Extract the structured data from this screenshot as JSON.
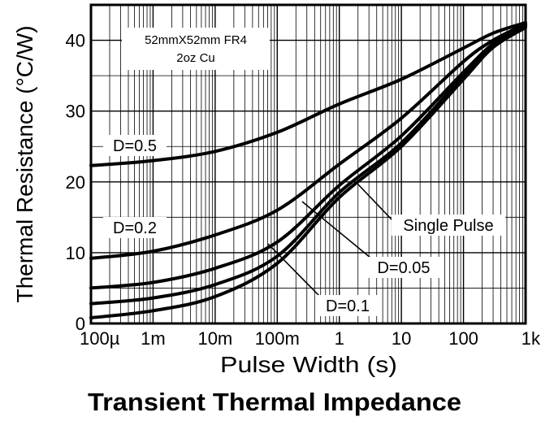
{
  "chart_data": {
    "type": "line",
    "title": "Transient Thermal Impedance",
    "xlabel": "Pulse Width (s)",
    "ylabel": "Thermal Resistance (°C/W)",
    "x_scale": "log",
    "xlim": [
      0.0001,
      1000
    ],
    "ylim": [
      0,
      45
    ],
    "grid": true,
    "x_ticks": [
      {
        "value": 0.0001,
        "label": "100µ"
      },
      {
        "value": 0.001,
        "label": "1m"
      },
      {
        "value": 0.01,
        "label": "10m"
      },
      {
        "value": 0.1,
        "label": "100m"
      },
      {
        "value": 1,
        "label": "1"
      },
      {
        "value": 10,
        "label": "10"
      },
      {
        "value": 100,
        "label": "100"
      },
      {
        "value": 1000,
        "label": "1k"
      }
    ],
    "y_ticks": [
      {
        "value": 0,
        "label": "0"
      },
      {
        "value": 10,
        "label": "10"
      },
      {
        "value": 20,
        "label": "20"
      },
      {
        "value": 30,
        "label": "30"
      },
      {
        "value": 40,
        "label": "40"
      }
    ],
    "annotation": [
      "52mmX52mm FR4",
      "2oz Cu"
    ],
    "series": [
      {
        "name": "D=0.5",
        "x": [
          0.0001,
          0.001,
          0.01,
          0.1,
          1,
          10,
          100,
          300,
          1000
        ],
        "y": [
          22.3,
          23.0,
          24.3,
          27.0,
          31.0,
          34.5,
          38.9,
          41.0,
          42.5
        ]
      },
      {
        "name": "D=0.2",
        "x": [
          0.0001,
          0.001,
          0.01,
          0.1,
          1,
          10,
          100,
          300,
          1000
        ],
        "y": [
          9.2,
          10.2,
          12.5,
          16.0,
          22.5,
          29.0,
          37.0,
          40.0,
          42.3
        ]
      },
      {
        "name": "D=0.1",
        "x": [
          0.0001,
          0.001,
          0.01,
          0.1,
          1,
          10,
          100,
          300,
          1000
        ],
        "y": [
          5.0,
          5.8,
          7.8,
          11.5,
          19.5,
          26.5,
          35.5,
          39.5,
          42.2
        ]
      },
      {
        "name": "D=0.05",
        "x": [
          0.0001,
          0.001,
          0.01,
          0.1,
          1,
          10,
          100,
          300,
          1000
        ],
        "y": [
          2.8,
          3.6,
          5.5,
          9.5,
          18.5,
          25.5,
          35.0,
          39.2,
          42.0
        ]
      },
      {
        "name": "Single Pulse",
        "x": [
          0.0001,
          0.001,
          0.01,
          0.1,
          1,
          10,
          100,
          300,
          1000
        ],
        "y": [
          0.8,
          1.8,
          3.8,
          8.5,
          17.8,
          25.0,
          34.5,
          39.0,
          41.8
        ]
      }
    ],
    "curve_labels": [
      {
        "text": "D=0.5",
        "series": "D=0.5"
      },
      {
        "text": "D=0.2",
        "series": "D=0.2"
      },
      {
        "text": "D=0.1",
        "series": "D=0.1"
      },
      {
        "text": "D=0.05",
        "series": "D=0.05"
      },
      {
        "text": "Single Pulse",
        "series": "Single Pulse"
      }
    ]
  }
}
